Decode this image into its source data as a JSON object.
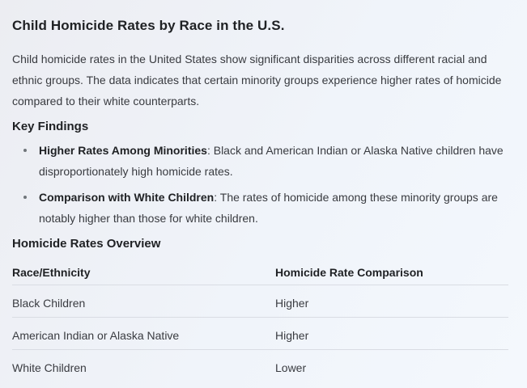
{
  "card": {
    "title": "Child Homicide Rates by Race in the U.S.",
    "intro": "Child homicide rates in the United States show significant disparities across different racial and ethnic groups. The data indicates that certain minority groups experience higher rates of homicide compared to their white counterparts.",
    "key_findings": {
      "heading": "Key Findings",
      "bullets": [
        {
          "term": "Higher Rates Among Minorities",
          "rest": ": Black and American Indian or Alaska Native children have disproportionately high homicide rates."
        },
        {
          "term": "Comparison with White Children",
          "rest": ": The rates of homicide among these minority groups are notably higher than those for white children."
        }
      ]
    },
    "overview": {
      "heading": "Homicide Rates Overview",
      "table": {
        "columns": [
          "Race/Ethnicity",
          "Homicide Rate Comparison"
        ],
        "rows": [
          {
            "race": "Black Children",
            "comparison": "Higher"
          },
          {
            "race": "American Indian or Alaska Native",
            "comparison": "Higher"
          },
          {
            "race": "White Children",
            "comparison": "Lower"
          }
        ]
      }
    }
  },
  "colors": {
    "background_top_left": "#ecedf2",
    "background_bottom_right": "#f4f8fd",
    "heading_text": "#1f2124",
    "body_text": "#393b40",
    "divider": "#d9dce3",
    "bullet_dot": "#70757a"
  }
}
